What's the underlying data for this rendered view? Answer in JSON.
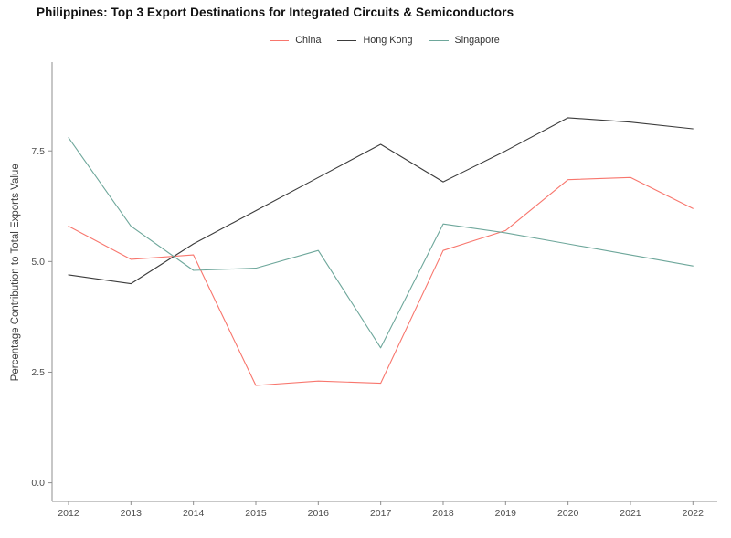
{
  "title": "Philippines: Top 3 Export Destinations for Integrated Circuits & Semiconductors",
  "legend": {
    "position": "top-center",
    "items": [
      {
        "label": "China",
        "color": "#f8766d"
      },
      {
        "label": "Hong Kong",
        "color": "#3b3b3b"
      },
      {
        "label": "Singapore",
        "color": "#6ea79b"
      }
    ]
  },
  "chart_data": {
    "type": "line",
    "title": "Philippines: Top 3 Export Destinations for Integrated Circuits & Semiconductors",
    "xlabel": "",
    "ylabel": "Percentage Contribution to Total Exports Value",
    "x": [
      2012,
      2013,
      2014,
      2015,
      2016,
      2017,
      2018,
      2019,
      2020,
      2021,
      2022
    ],
    "x_tick_labels": [
      "2012",
      "2013",
      "2014",
      "2015",
      "2016",
      "2017",
      "2018",
      "2019",
      "2020",
      "2021",
      "2022"
    ],
    "series": [
      {
        "name": "China",
        "color": "#f8766d",
        "values": [
          5.8,
          5.05,
          5.15,
          2.2,
          2.3,
          2.25,
          5.25,
          5.7,
          6.85,
          6.9,
          6.2
        ]
      },
      {
        "name": "Hong Kong",
        "color": "#3b3b3b",
        "values": [
          4.7,
          4.5,
          5.4,
          6.15,
          6.9,
          7.65,
          6.8,
          7.5,
          8.25,
          8.15,
          8.0
        ]
      },
      {
        "name": "Singapore",
        "color": "#6ea79b",
        "values": [
          7.8,
          5.8,
          4.8,
          4.85,
          5.25,
          3.05,
          5.85,
          5.65,
          5.4,
          5.15,
          4.9
        ]
      }
    ],
    "ylim": [
      0,
      9.5
    ],
    "yticks": [
      0,
      2.5,
      5,
      7.5
    ],
    "ytick_labels": [
      "0.0",
      "2.5",
      "5.0",
      "7.5"
    ],
    "grid": false,
    "legend_position": "top-center",
    "axis_color": "#8f8f8f",
    "tick_label_color": "#4d4d4d"
  }
}
